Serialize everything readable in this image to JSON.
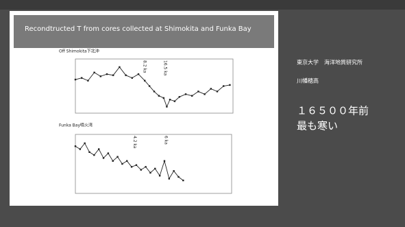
{
  "slide": {
    "title": "Recondtructed T from cores collected at Shimokita and Funka Bay",
    "affiliation": "東京大学　海洋地質研究所",
    "author": "川幡穂高",
    "headline1": "１６５００年前",
    "headline2": "最も寒い"
  },
  "chart_data": [
    {
      "type": "line",
      "title": "Off Shimokita下北沖",
      "color": "#222222",
      "xlim": [
        0,
        100
      ],
      "ylim": [
        0,
        10
      ],
      "x": [
        0,
        4,
        8,
        12,
        16,
        20,
        24,
        28,
        32,
        36,
        40,
        44,
        47,
        50,
        53,
        56,
        58,
        60,
        63,
        66,
        70,
        74,
        78,
        82,
        86,
        90,
        94,
        98
      ],
      "values": [
        6.2,
        6.5,
        6.0,
        7.5,
        6.8,
        7.2,
        7.0,
        8.5,
        7.0,
        6.5,
        7.2,
        6.0,
        5.0,
        4.0,
        3.2,
        2.8,
        1.2,
        2.5,
        2.2,
        3.0,
        3.5,
        3.2,
        4.0,
        3.5,
        4.5,
        4.0,
        5.0,
        5.2
      ],
      "annotations": [
        {
          "text": "8.2 ka",
          "x": 44
        },
        {
          "text": "16.5 ka",
          "x": 57
        }
      ]
    },
    {
      "type": "line",
      "title": "Funka Bay噴火湾",
      "color": "#222222",
      "xlim": [
        0,
        100
      ],
      "ylim": [
        0,
        10
      ],
      "x": [
        0,
        3,
        6,
        9,
        12,
        15,
        18,
        21,
        24,
        27,
        30,
        33,
        36,
        39,
        42,
        45,
        48,
        51,
        54,
        57,
        60,
        63,
        66,
        69
      ],
      "values": [
        8,
        7.5,
        8.5,
        7,
        6.5,
        7.5,
        6,
        6.8,
        5.5,
        6.2,
        5,
        5.5,
        4.5,
        4.8,
        4,
        4.5,
        3.5,
        4.2,
        3,
        5.5,
        2.5,
        3.8,
        2.8,
        2.2
      ],
      "annotations": [
        {
          "text": "4.2 ka",
          "x": 38
        },
        {
          "text": "6 ka",
          "x": 58
        }
      ]
    }
  ]
}
